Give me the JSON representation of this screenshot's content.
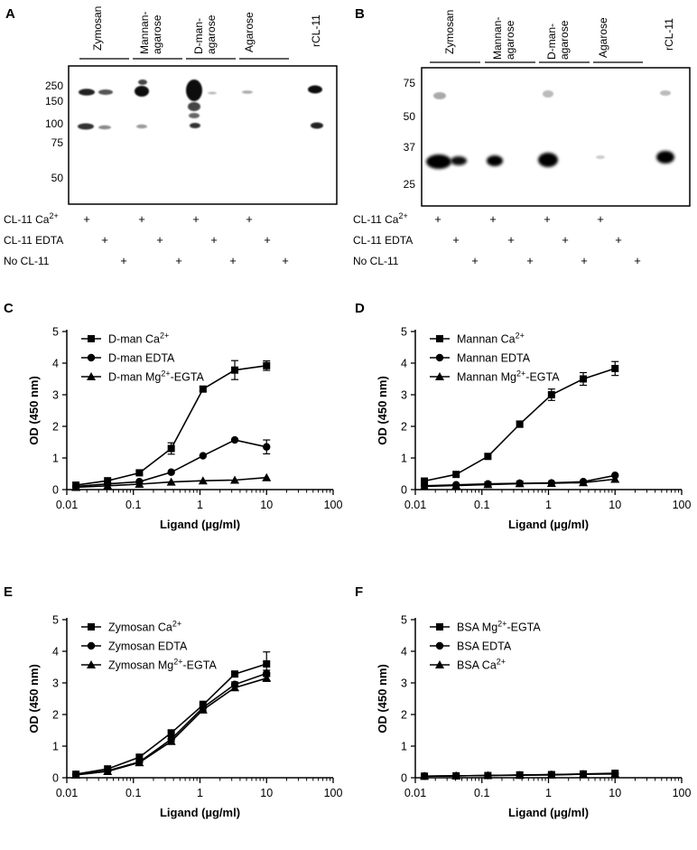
{
  "blot_a": {
    "panel_label": "A",
    "lane_groups": [
      "Zymosan",
      "Mannan-\nagarose",
      "D-man-\nagarose",
      "Agarose",
      "rCL-11"
    ],
    "markers": [
      "250",
      "150",
      "100",
      "75",
      "50"
    ],
    "conditions": [
      "CL-11 Ca2+",
      "CL-11 EDTA",
      "No CL-11"
    ],
    "plus": "+"
  },
  "blot_b": {
    "panel_label": "B",
    "lane_groups": [
      "Zymosan",
      "Mannan-\nagarose",
      "D-man-\nagarose",
      "Agarose",
      "rCL-11"
    ],
    "markers": [
      "75",
      "50",
      "37",
      "25"
    ],
    "conditions": [
      "CL-11 Ca2+",
      "CL-11 EDTA",
      "No CL-11"
    ],
    "plus": "+"
  },
  "chart_data": [
    {
      "panel_label": "C",
      "type": "line",
      "xscale": "log",
      "xlabel": "Ligand (µg/ml)",
      "ylabel": "OD (450 nm)",
      "xlim": [
        0.01,
        100
      ],
      "ylim": [
        0,
        5
      ],
      "xticks": [
        "0.01",
        "0.1",
        "1",
        "10",
        "100"
      ],
      "yticks": [
        "0",
        "1",
        "2",
        "3",
        "4",
        "5"
      ],
      "x": [
        0.0137,
        0.041,
        0.123,
        0.37,
        1.11,
        3.33,
        10
      ],
      "series": [
        {
          "name": "D-man Ca2+",
          "marker": "square",
          "values": [
            0.14,
            0.28,
            0.53,
            1.3,
            3.18,
            3.78,
            3.92
          ],
          "err": [
            0.02,
            0.04,
            0.06,
            0.18,
            0.08,
            0.3,
            0.15
          ]
        },
        {
          "name": "D-man EDTA",
          "marker": "circle",
          "values": [
            0.1,
            0.18,
            0.25,
            0.55,
            1.07,
            1.57,
            1.35
          ],
          "err": [
            0.02,
            0.02,
            0.03,
            0.04,
            0.04,
            0.04,
            0.22
          ]
        },
        {
          "name": "D-man Mg2+-EGTA",
          "marker": "triangle",
          "values": [
            0.07,
            0.12,
            0.17,
            0.24,
            0.28,
            0.3,
            0.38
          ],
          "err": [
            0.01,
            0.01,
            0.01,
            0.02,
            0.02,
            0.02,
            0.03
          ]
        }
      ]
    },
    {
      "panel_label": "D",
      "type": "line",
      "xscale": "log",
      "xlabel": "Ligand (µg/ml)",
      "ylabel": "OD (450 nm)",
      "xlim": [
        0.01,
        100
      ],
      "ylim": [
        0,
        5
      ],
      "xticks": [
        "0.01",
        "0.1",
        "1",
        "10",
        "100"
      ],
      "yticks": [
        "0",
        "1",
        "2",
        "3",
        "4",
        "5"
      ],
      "x": [
        0.0137,
        0.041,
        0.123,
        0.37,
        1.11,
        3.33,
        10
      ],
      "series": [
        {
          "name": "Mannan Ca2+",
          "marker": "square",
          "values": [
            0.27,
            0.48,
            1.05,
            2.07,
            3.0,
            3.5,
            3.83
          ],
          "err": [
            0.03,
            0.04,
            0.06,
            0.1,
            0.18,
            0.2,
            0.22
          ]
        },
        {
          "name": "Mannan EDTA",
          "marker": "circle",
          "values": [
            0.12,
            0.15,
            0.18,
            0.2,
            0.21,
            0.25,
            0.45
          ],
          "err": [
            0.02,
            0.02,
            0.06,
            0.07,
            0.03,
            0.03,
            0.04
          ]
        },
        {
          "name": "Mannan Mg2+-EGTA",
          "marker": "triangle",
          "values": [
            0.1,
            0.13,
            0.16,
            0.19,
            0.2,
            0.22,
            0.33
          ],
          "err": [
            0.02,
            0.02,
            0.04,
            0.05,
            0.03,
            0.03,
            0.04
          ]
        }
      ]
    },
    {
      "panel_label": "E",
      "type": "line",
      "xscale": "log",
      "xlabel": "Ligand (µg/ml)",
      "ylabel": "OD (450 nm)",
      "xlim": [
        0.01,
        100
      ],
      "ylim": [
        0,
        5
      ],
      "xticks": [
        "0.01",
        "0.1",
        "1",
        "10",
        "100"
      ],
      "yticks": [
        "0",
        "1",
        "2",
        "3",
        "4",
        "5"
      ],
      "x": [
        0.0137,
        0.041,
        0.123,
        0.37,
        1.11,
        3.33,
        10
      ],
      "series": [
        {
          "name": "Zymosan Ca2+",
          "marker": "square",
          "values": [
            0.11,
            0.28,
            0.65,
            1.42,
            2.3,
            3.28,
            3.6
          ],
          "err": [
            0.02,
            0.03,
            0.05,
            0.08,
            0.12,
            0.08,
            0.38
          ]
        },
        {
          "name": "Zymosan EDTA",
          "marker": "circle",
          "values": [
            0.1,
            0.22,
            0.5,
            1.22,
            2.22,
            2.95,
            3.3
          ],
          "err": [
            0.02,
            0.03,
            0.05,
            0.08,
            0.1,
            0.08,
            0.1
          ]
        },
        {
          "name": "Zymosan Mg2+-EGTA",
          "marker": "triangle",
          "values": [
            0.09,
            0.2,
            0.48,
            1.15,
            2.15,
            2.85,
            3.15
          ],
          "err": [
            0.02,
            0.03,
            0.04,
            0.07,
            0.1,
            0.08,
            0.1
          ]
        }
      ]
    },
    {
      "panel_label": "F",
      "type": "line",
      "xscale": "log",
      "xlabel": "Ligand (µg/ml)",
      "ylabel": "OD (450 nm)",
      "xlim": [
        0.01,
        100
      ],
      "ylim": [
        0,
        5
      ],
      "xticks": [
        "0.01",
        "0.1",
        "1",
        "10",
        "100"
      ],
      "yticks": [
        "0",
        "1",
        "2",
        "3",
        "4",
        "5"
      ],
      "x": [
        0.0137,
        0.041,
        0.123,
        0.37,
        1.11,
        3.33,
        10
      ],
      "series": [
        {
          "name": "BSA Mg2+-EGTA",
          "marker": "square",
          "values": [
            0.05,
            0.06,
            0.07,
            0.09,
            0.1,
            0.12,
            0.14
          ],
          "err": [
            0.01,
            0.01,
            0.01,
            0.01,
            0.01,
            0.01,
            0.02
          ]
        },
        {
          "name": "BSA EDTA",
          "marker": "circle",
          "values": [
            0.05,
            0.06,
            0.07,
            0.08,
            0.1,
            0.11,
            0.13
          ],
          "err": [
            0.01,
            0.01,
            0.01,
            0.01,
            0.01,
            0.01,
            0.02
          ]
        },
        {
          "name": "BSA Ca2+",
          "marker": "triangle",
          "values": [
            0.05,
            0.06,
            0.07,
            0.08,
            0.09,
            0.11,
            0.12
          ],
          "err": [
            0.01,
            0.01,
            0.01,
            0.01,
            0.01,
            0.01,
            0.02
          ]
        }
      ]
    }
  ]
}
